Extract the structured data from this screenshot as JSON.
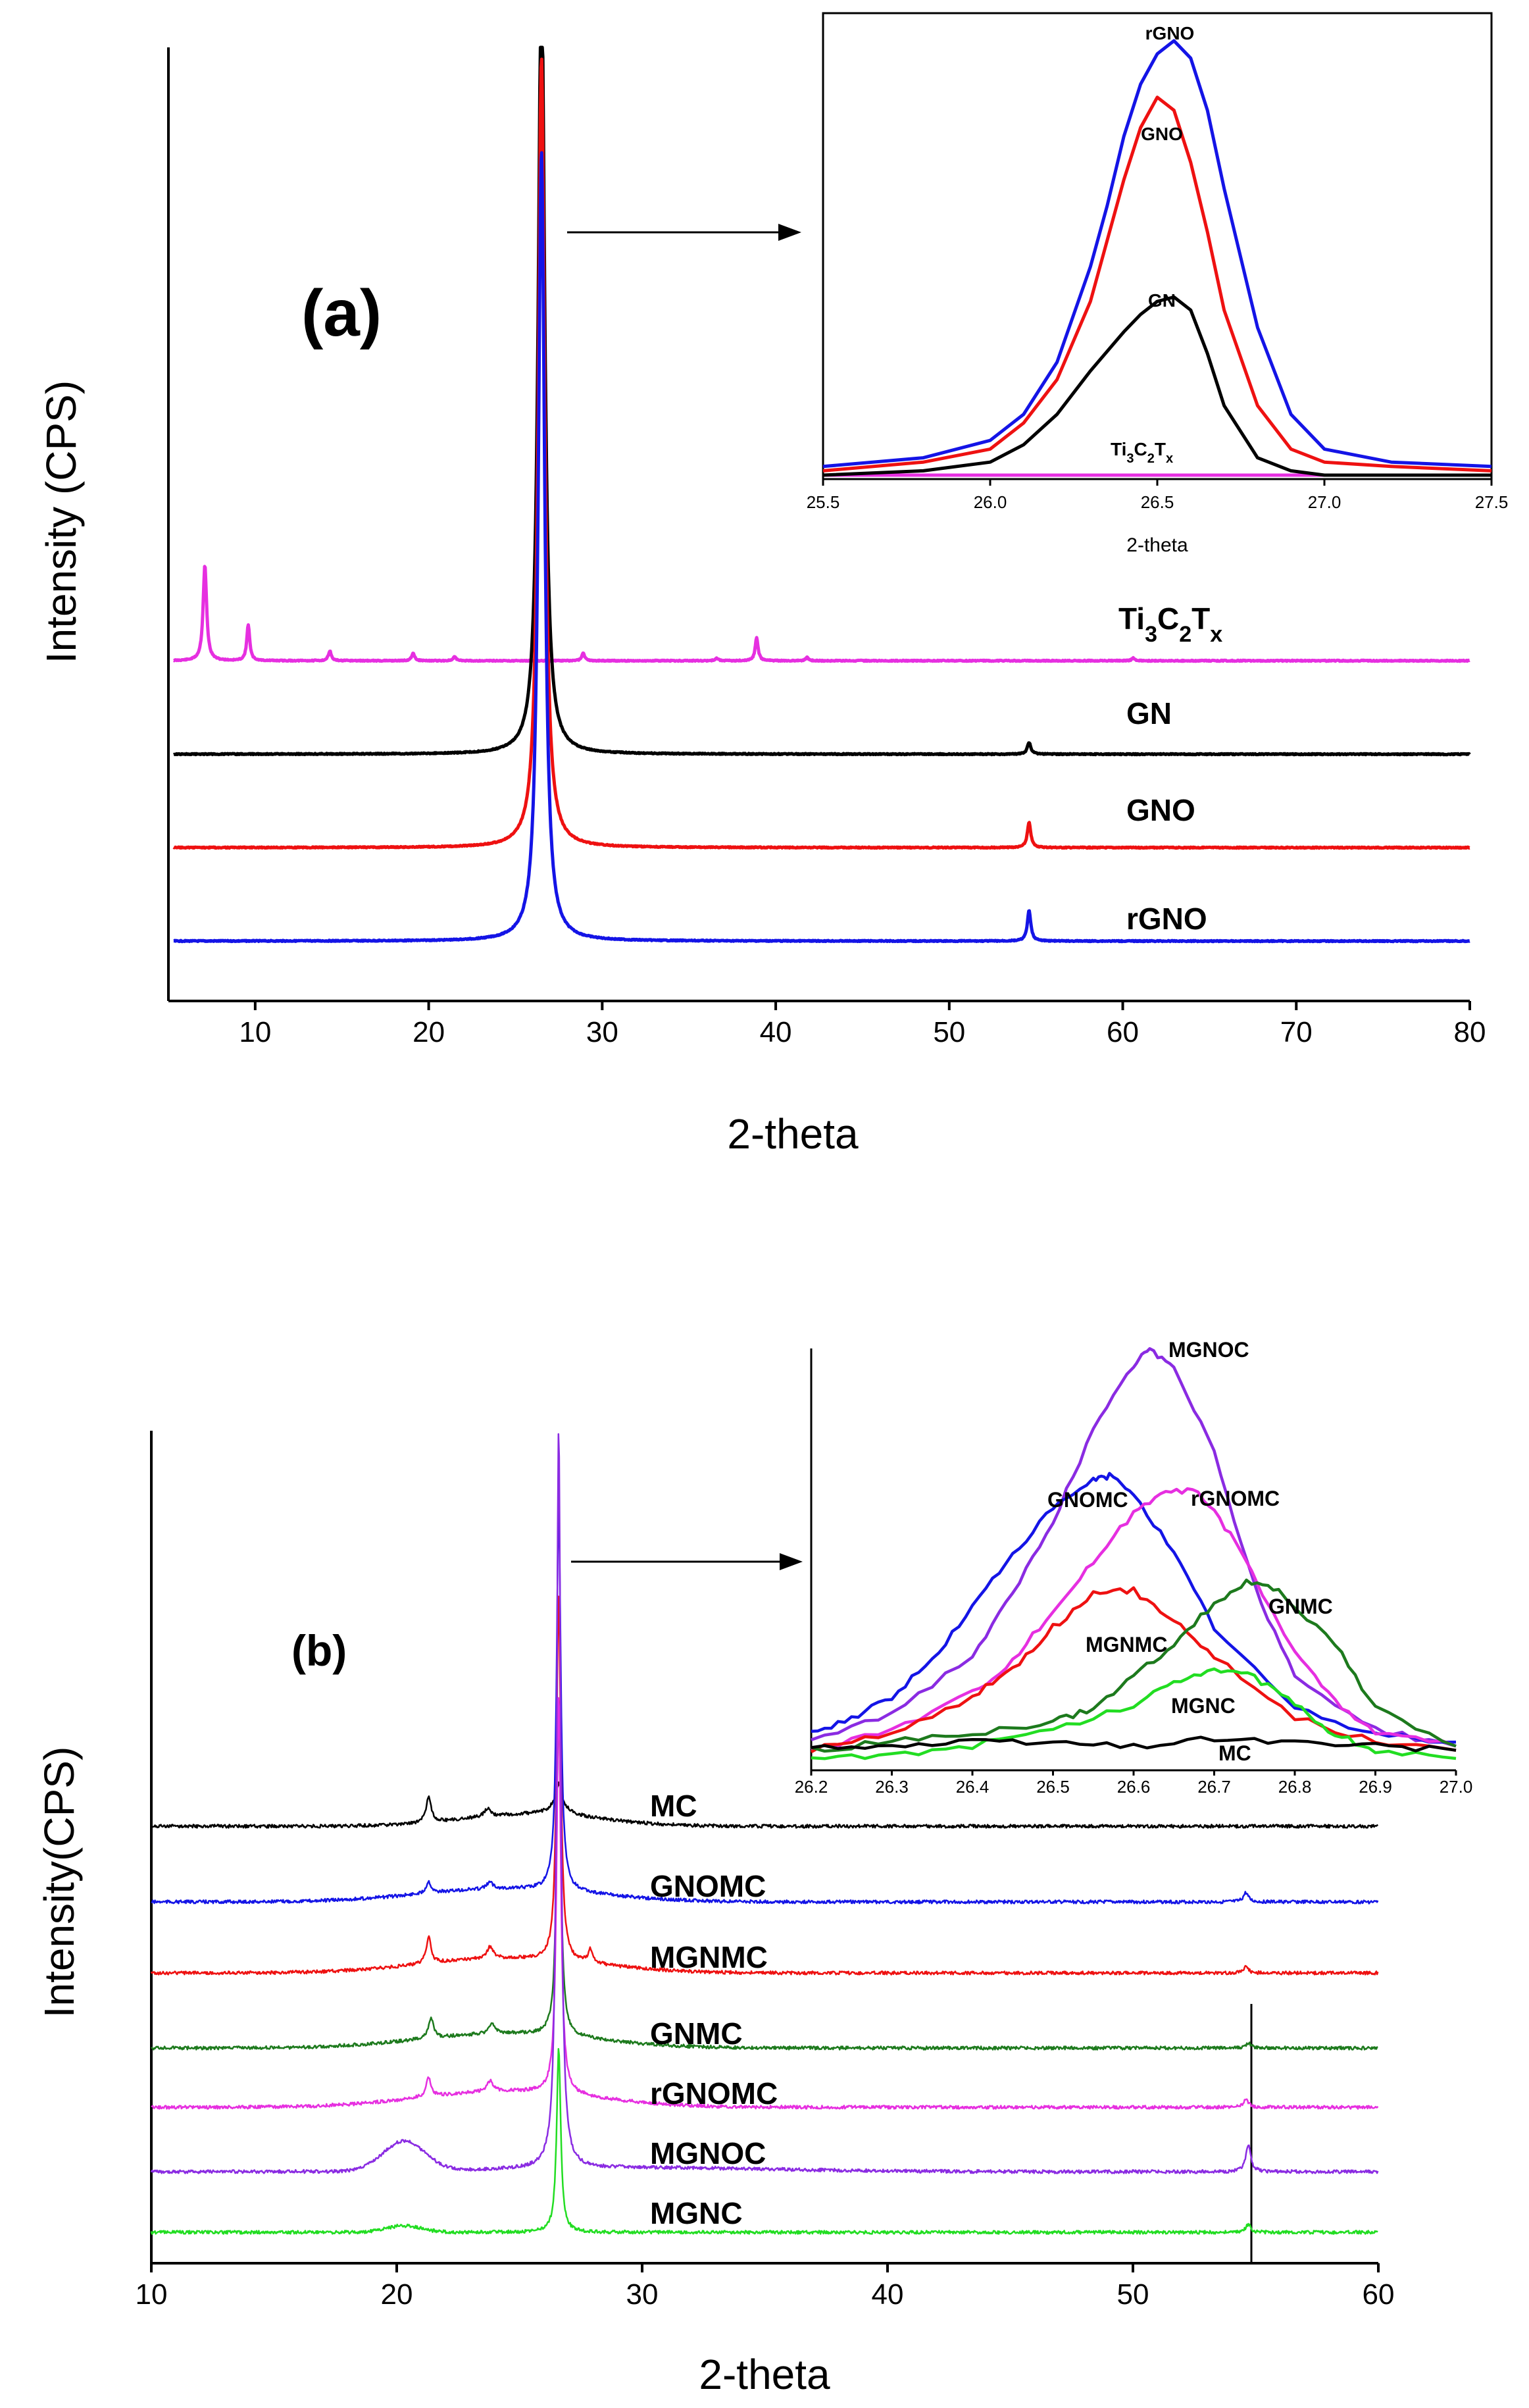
{
  "chart_data": [
    {
      "id": "a",
      "type": "line",
      "panel_label": "(a)",
      "xlabel": "2-theta",
      "ylabel": "Intensity (CPS)",
      "xlim": [
        5,
        80
      ],
      "xticks": [
        "10",
        "20",
        "30",
        "40",
        "50",
        "60",
        "70",
        "80"
      ],
      "series": [
        {
          "name": "Ti3C2Tx",
          "label_main": "Ti",
          "label_sub1": "3",
          "label_c": "C",
          "label_sub2": "2",
          "label_t": "T",
          "label_sub3": "x",
          "color": "#e62fe0",
          "offset": 3.0,
          "peaks": [
            [
              7.1,
              1.45,
              0.12
            ],
            [
              9.6,
              0.55,
              0.1
            ],
            [
              14.3,
              0.15,
              0.1
            ],
            [
              19.1,
              0.12,
              0.1
            ],
            [
              21.5,
              0.06,
              0.1
            ],
            [
              28.9,
              0.12,
              0.1
            ],
            [
              36.6,
              0.04,
              0.1
            ],
            [
              38.9,
              0.35,
              0.1
            ],
            [
              41.8,
              0.05,
              0.1
            ],
            [
              60.6,
              0.04,
              0.1
            ]
          ]
        },
        {
          "name": "GN",
          "color": "#000000",
          "offset": 2.0,
          "peaks": [
            [
              26.5,
              12.0,
              0.22
            ],
            [
              54.6,
              0.18,
              0.12
            ]
          ]
        },
        {
          "name": "GNO",
          "color": "#ee1111",
          "offset": 1.0,
          "peaks": [
            [
              26.5,
              12.0,
              0.22
            ],
            [
              54.6,
              0.38,
              0.12
            ]
          ]
        },
        {
          "name": "rGNO",
          "color": "#1414e6",
          "offset": 0.0,
          "peaks": [
            [
              26.5,
              12.0,
              0.22
            ],
            [
              54.6,
              0.46,
              0.12
            ]
          ]
        }
      ],
      "inset": {
        "xlabel": "2-theta",
        "xlim": [
          25.5,
          27.5
        ],
        "xticks": [
          "25.5",
          "26.0",
          "26.5",
          "27.0",
          "27.5"
        ],
        "ylim": [
          0,
          100
        ],
        "series": [
          {
            "name": "rGNO",
            "color": "#1414e6",
            "x": [
              25.5,
              25.8,
              26.0,
              26.1,
              26.2,
              26.3,
              26.35,
              26.4,
              26.45,
              26.5,
              26.55,
              26.6,
              26.65,
              26.7,
              26.8,
              26.9,
              27.0,
              27.2,
              27.5
            ],
            "y": [
              2,
              4,
              8,
              14,
              26,
              48,
              62,
              78,
              90,
              97,
              100,
              96,
              84,
              66,
              34,
              14,
              6,
              3,
              2
            ]
          },
          {
            "name": "GNO",
            "color": "#ee1111",
            "x": [
              25.5,
              25.8,
              26.0,
              26.1,
              26.2,
              26.3,
              26.35,
              26.4,
              26.45,
              26.5,
              26.55,
              26.6,
              26.65,
              26.7,
              26.8,
              26.9,
              27.0,
              27.2,
              27.5
            ],
            "y": [
              1,
              3,
              6,
              12,
              22,
              40,
              54,
              68,
              80,
              87,
              84,
              72,
              56,
              38,
              16,
              6,
              3,
              2,
              1
            ]
          },
          {
            "name": "GN",
            "color": "#000000",
            "x": [
              25.5,
              25.8,
              26.0,
              26.1,
              26.2,
              26.3,
              26.4,
              26.45,
              26.5,
              26.55,
              26.6,
              26.65,
              26.7,
              26.8,
              26.9,
              27.0,
              27.2,
              27.5
            ],
            "y": [
              0,
              1,
              3,
              7,
              14,
              24,
              33,
              37,
              40,
              41,
              38,
              28,
              16,
              4,
              1,
              0,
              0,
              0
            ]
          },
          {
            "name": "Ti3C2Tx",
            "color": "#e62fe0",
            "x": [
              25.5,
              27.5
            ],
            "y": [
              0,
              0
            ]
          }
        ],
        "labels": {
          "rGNO": "rGNO",
          "GNO": "GNO",
          "GN": "GN",
          "ti": {
            "main": "Ti",
            "s1": "3",
            "c": "C",
            "s2": "2",
            "t": "T",
            "s3": "x"
          }
        }
      }
    },
    {
      "id": "b",
      "type": "line",
      "panel_label": "(b)",
      "xlabel": "2-theta",
      "ylabel": "Intensity(CPS)",
      "xlim": [
        10,
        60
      ],
      "xticks": [
        "10",
        "20",
        "30",
        "40",
        "50",
        "60"
      ],
      "reference_line_x": 54.7,
      "series": [
        {
          "name": "MC",
          "color": "#000000",
          "offset": 6
        },
        {
          "name": "GNOMC",
          "color": "#1414e6",
          "offset": 5
        },
        {
          "name": "MGNMC",
          "color": "#ee1111",
          "offset": 4
        },
        {
          "name": "GNMC",
          "color": "#1d7a1d",
          "offset": 3
        },
        {
          "name": "rGNOMC",
          "color": "#e62fe0",
          "offset": 2
        },
        {
          "name": "MGNOC",
          "color": "#8a2be2",
          "offset": 1
        },
        {
          "name": "MGNC",
          "color": "#22dd22",
          "offset": 0
        }
      ],
      "inset": {
        "xlim": [
          26.2,
          27.0
        ],
        "xticks": [
          "26.2",
          "26.3",
          "26.4",
          "26.5",
          "26.6",
          "26.7",
          "26.8",
          "26.9",
          "27.0"
        ],
        "ylim": [
          0,
          100
        ],
        "series": [
          {
            "name": "MGNOC",
            "color": "#8a2be2",
            "x": [
              26.2,
              26.3,
              26.4,
              26.45,
              26.5,
              26.55,
              26.6,
              26.62,
              26.65,
              26.7,
              26.75,
              26.8,
              26.9,
              27.0
            ],
            "y": [
              5,
              11,
              25,
              40,
              58,
              80,
              96,
              100,
              96,
              75,
              42,
              20,
              7,
              3
            ]
          },
          {
            "name": "GNOMC",
            "color": "#1414e6",
            "x": [
              26.2,
              26.25,
              26.3,
              26.35,
              26.4,
              26.45,
              26.5,
              26.55,
              26.57,
              26.6,
              26.65,
              26.7,
              26.8,
              26.9,
              27.0
            ],
            "y": [
              6,
              10,
              15,
              24,
              37,
              50,
              61,
              68,
              69,
              65,
              50,
              32,
              12,
              6,
              4
            ]
          },
          {
            "name": "rGNOMC",
            "color": "#e62fe0",
            "x": [
              26.2,
              26.3,
              26.4,
              26.45,
              26.5,
              26.55,
              26.6,
              26.64,
              26.68,
              26.72,
              26.8,
              26.85,
              26.9,
              27.0
            ],
            "y": [
              2,
              7,
              16,
              24,
              36,
              48,
              60,
              66,
              65,
              55,
              26,
              14,
              6,
              3
            ]
          },
          {
            "name": "MGNMC",
            "color": "#ee1111",
            "x": [
              26.2,
              26.3,
              26.4,
              26.45,
              26.5,
              26.55,
              26.6,
              26.65,
              26.7,
              26.8,
              26.9,
              27.0
            ],
            "y": [
              2,
              6,
              15,
              22,
              32,
              40,
              41,
              34,
              25,
              10,
              4,
              2
            ]
          },
          {
            "name": "GNMC",
            "color": "#1d7a1d",
            "x": [
              26.2,
              26.3,
              26.4,
              26.5,
              26.55,
              26.6,
              26.65,
              26.7,
              26.74,
              26.78,
              26.85,
              26.9,
              27.0
            ],
            "y": [
              2,
              4,
              6,
              9,
              12,
              20,
              28,
              38,
              43,
              41,
              28,
              12,
              3
            ]
          },
          {
            "name": "MGNC",
            "color": "#22dd22",
            "x": [
              26.2,
              26.3,
              26.4,
              26.5,
              26.6,
              26.65,
              26.7,
              26.75,
              26.8,
              26.85,
              26.9,
              27.0
            ],
            "y": [
              0,
              1,
              3,
              7,
              13,
              19,
              22,
              20,
              13,
              6,
              2,
              0
            ]
          },
          {
            "name": "MC",
            "color": "#000000",
            "x": [
              26.2,
              26.3,
              26.4,
              26.5,
              26.6,
              26.7,
              26.8,
              26.9,
              27.0
            ],
            "y": [
              3,
              3,
              4,
              4,
              3,
              5,
              4,
              3,
              2
            ]
          }
        ]
      }
    }
  ]
}
